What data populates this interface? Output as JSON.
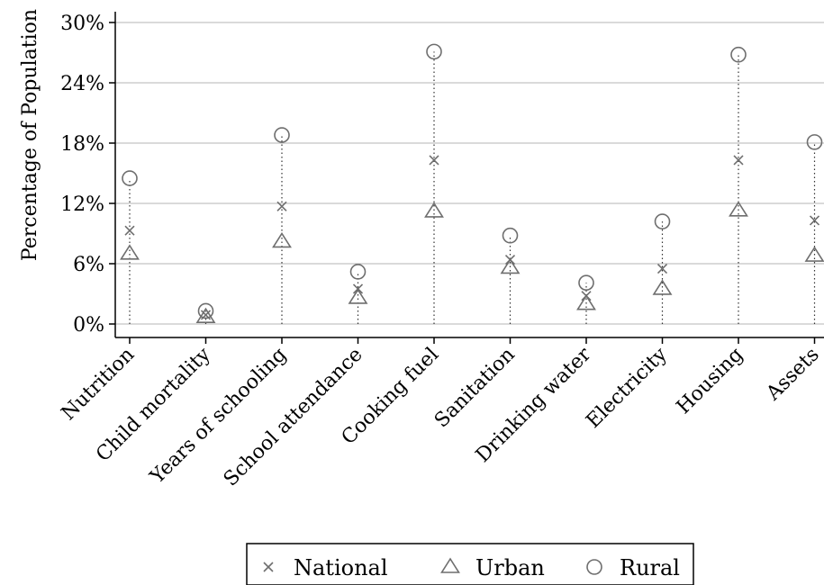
{
  "chart_data": {
    "type": "scatter",
    "categories": [
      "Nutrition",
      "Child mortality",
      "Years of schooling",
      "School attendance",
      "Cooking fuel",
      "Sanitation",
      "Drinking water",
      "Electricity",
      "Housing",
      "Assets"
    ],
    "series": [
      {
        "name": "National",
        "marker": "x",
        "values": [
          9.3,
          0.9,
          11.7,
          3.5,
          16.3,
          6.4,
          2.8,
          5.5,
          16.3,
          10.3
        ]
      },
      {
        "name": "Urban",
        "marker": "triangle",
        "values": [
          7.0,
          0.7,
          8.2,
          2.6,
          11.2,
          5.6,
          2.0,
          3.5,
          11.3,
          6.8
        ]
      },
      {
        "name": "Rural",
        "marker": "circle",
        "values": [
          14.5,
          1.3,
          18.8,
          5.2,
          27.1,
          8.8,
          4.1,
          10.2,
          26.8,
          18.1
        ]
      }
    ],
    "ylabel": "Percentage of Population",
    "ylim": [
      0,
      30
    ],
    "yticks": [
      "0%",
      "6%",
      "12%",
      "18%",
      "24%",
      "30%"
    ],
    "ytick_values": [
      0,
      6,
      12,
      18,
      24,
      30
    ],
    "grid": true,
    "legend_position": "bottom",
    "marker_color": "#6e6e6e"
  }
}
